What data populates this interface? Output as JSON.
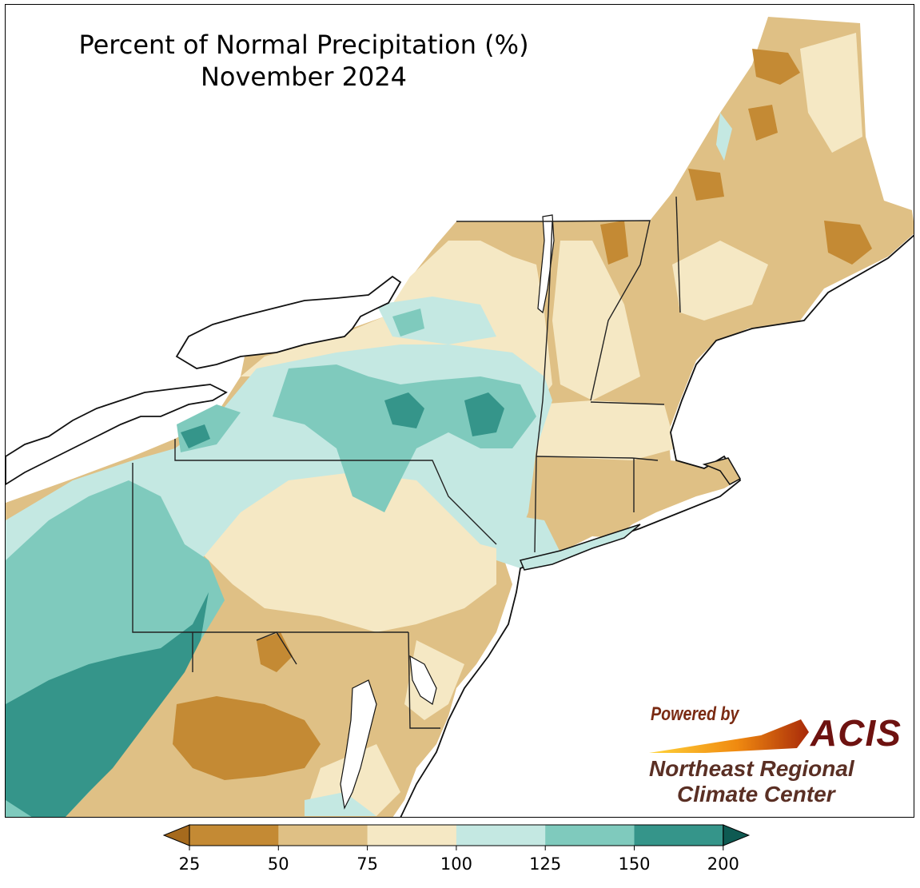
{
  "title": {
    "line1": "Percent of Normal Precipitation (%)",
    "line2": "November 2024"
  },
  "logo": {
    "powered_by": "Powered by",
    "acis": "ACIS",
    "org_line1": "Northeast Regional",
    "org_line2": "Climate Center"
  },
  "legend": {
    "ticks": [
      "25",
      "50",
      "75",
      "100",
      "125",
      "150",
      "200"
    ],
    "bins": [
      {
        "range": "<25",
        "color": "#a66a1d"
      },
      {
        "range": "25-50",
        "color": "#c48a34"
      },
      {
        "range": "50-75",
        "color": "#dfc085"
      },
      {
        "range": "75-100",
        "color": "#f5e8c4"
      },
      {
        "range": "100-125",
        "color": "#c4e8e2"
      },
      {
        "range": "125-150",
        "color": "#7fcabd"
      },
      {
        "range": "150-200",
        "color": "#35958a"
      },
      {
        "range": ">200",
        "color": "#0e5a52"
      }
    ]
  },
  "colors": {
    "water": "#ffffff",
    "boundary": "#222222",
    "county": "#9a9a9a"
  }
}
